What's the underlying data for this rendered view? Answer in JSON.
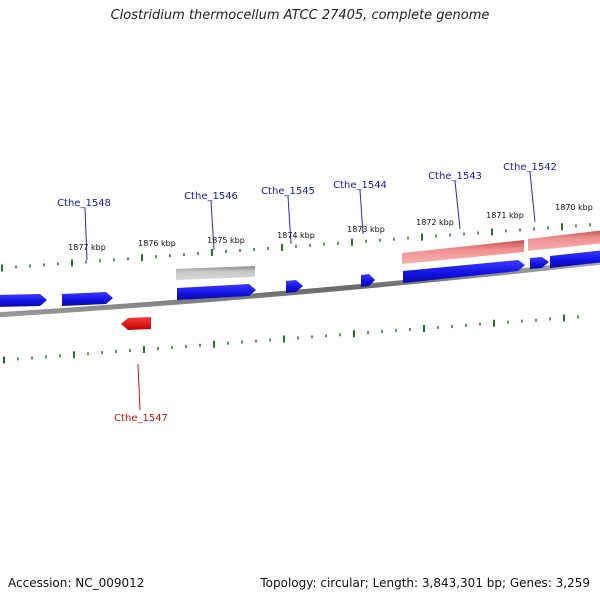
{
  "title": "Clostridium thermocellum ATCC 27405, complete genome",
  "footer": {
    "accession": "Accession: NC_009012",
    "summary": "Topology: circular; Length: 3,843,301 bp; Genes: 3,259"
  },
  "colors": {
    "forward_cds": "#1010e0",
    "reverse_cds": "#e01010",
    "gene_label_forward": "#1a1aa8",
    "gene_label_reverse": "#d01010",
    "tick": "#1e7a1e",
    "backbone": "#8c8c8c",
    "gray_feature": "#b4b4b4",
    "pink_feature": "#e88a8a"
  },
  "scale_labels": [
    "1877 kbp",
    "1876 kbp",
    "1875 kbp",
    "1874 kbp",
    "1873 kbp",
    "1872 kbp",
    "1871 kbp",
    "1870 kbp"
  ],
  "gene_labels": [
    {
      "name": "Cthe_1548",
      "strand": "forward"
    },
    {
      "name": "Cthe_1546",
      "strand": "forward"
    },
    {
      "name": "Cthe_1545",
      "strand": "forward"
    },
    {
      "name": "Cthe_1544",
      "strand": "forward"
    },
    {
      "name": "Cthe_1543",
      "strand": "forward"
    },
    {
      "name": "Cthe_1542",
      "strand": "forward"
    },
    {
      "name": "Cthe_1547",
      "strand": "reverse"
    }
  ]
}
